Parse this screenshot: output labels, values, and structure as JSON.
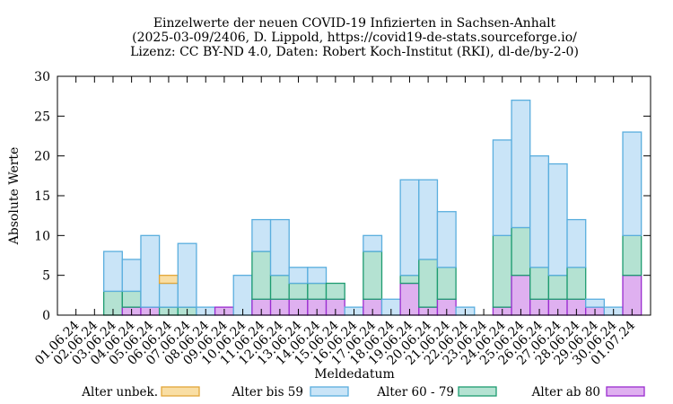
{
  "chart_data": {
    "type": "bar",
    "stacked": true,
    "title_lines": [
      "Einzelwerte der neuen COVID-19 Infizierten in Sachsen-Anhalt",
      "(2025-03-09/2406, D. Lippold, https://covid19-de-stats.sourceforge.io/",
      "Lizenz: CC BY-ND 4.0, Daten: Robert Koch-Institut (RKI), dl-de/by-2-0)"
    ],
    "xlabel": "Meldedatum",
    "ylabel": "Absolute Werte",
    "ylim": [
      0,
      30
    ],
    "yticks": [
      0,
      5,
      10,
      15,
      20,
      25,
      30
    ],
    "grid": false,
    "legend_position": "bottom",
    "categories": [
      "01.06.24",
      "02.06.24",
      "03.06.24",
      "04.06.24",
      "05.06.24",
      "06.06.24",
      "07.06.24",
      "08.06.24",
      "09.06.24",
      "10.06.24",
      "11.06.24",
      "12.06.24",
      "13.06.24",
      "14.06.24",
      "15.06.24",
      "16.06.24",
      "17.06.24",
      "18.06.24",
      "19.06.24",
      "20.06.24",
      "21.06.24",
      "22.06.24",
      "23.06.24",
      "24.06.24",
      "25.06.24",
      "26.06.24",
      "27.06.24",
      "28.06.24",
      "29.06.24",
      "30.06.24",
      "01.07.24"
    ],
    "series": [
      {
        "name": "Alter unbek.",
        "fill": "#f9dea4",
        "stroke": "#e2a63a",
        "values": [
          0,
          0,
          0,
          0,
          0,
          1,
          0,
          0,
          0,
          0,
          0,
          0,
          0,
          0,
          0,
          0,
          0,
          0,
          0,
          0,
          0,
          0,
          0,
          0,
          0,
          0,
          0,
          0,
          0,
          0,
          0
        ]
      },
      {
        "name": "Alter bis 59",
        "fill": "#c9e4f7",
        "stroke": "#5aaede",
        "values": [
          0,
          0,
          5,
          4,
          9,
          3,
          8,
          1,
          0,
          5,
          4,
          7,
          2,
          2,
          0,
          1,
          2,
          2,
          12,
          10,
          7,
          1,
          0,
          12,
          16,
          14,
          14,
          6,
          1,
          1,
          13
        ]
      },
      {
        "name": "Alter 60 - 79",
        "fill": "#b4e2d2",
        "stroke": "#1d9b70",
        "values": [
          0,
          0,
          3,
          2,
          0,
          1,
          1,
          0,
          0,
          0,
          6,
          3,
          2,
          2,
          2,
          0,
          6,
          0,
          1,
          6,
          4,
          0,
          0,
          9,
          6,
          4,
          3,
          4,
          0,
          0,
          5
        ]
      },
      {
        "name": "Alter ab 80",
        "fill": "#dfb0f0",
        "stroke": "#9a2ccf",
        "values": [
          0,
          0,
          0,
          1,
          1,
          0,
          0,
          0,
          1,
          0,
          2,
          2,
          2,
          2,
          2,
          0,
          2,
          0,
          4,
          1,
          2,
          0,
          0,
          1,
          5,
          2,
          2,
          2,
          1,
          0,
          5
        ]
      }
    ]
  }
}
